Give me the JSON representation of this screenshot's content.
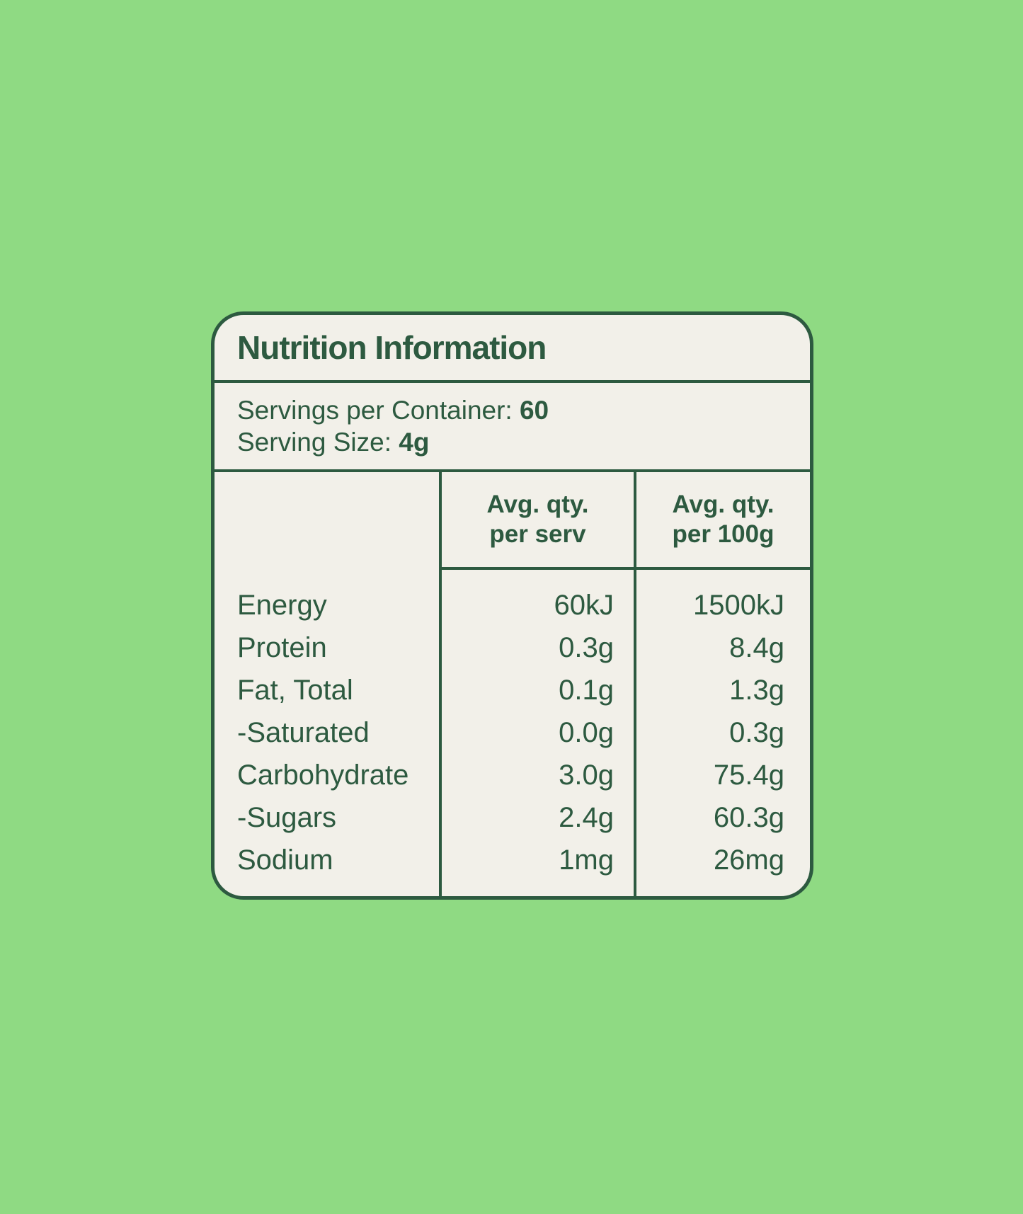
{
  "colors": {
    "background": "#8FDA83",
    "card": "#F2F0E9",
    "ink": "#2D5A40"
  },
  "card": {
    "title": "Nutrition Information",
    "servings_per_container": {
      "label": "Servings per Container:",
      "value": "60"
    },
    "serving_size": {
      "label": "Serving Size:",
      "value": "4g"
    },
    "table": {
      "columns": [
        {
          "line1": "",
          "line2": ""
        },
        {
          "line1": "Avg. qty.",
          "line2": "per serv"
        },
        {
          "line1": "Avg. qty.",
          "line2": "per 100g"
        }
      ],
      "rows": [
        {
          "label": "Energy",
          "per_serv": "60kJ",
          "per_100g": "1500kJ"
        },
        {
          "label": "Protein",
          "per_serv": "0.3g",
          "per_100g": "8.4g"
        },
        {
          "label": "Fat, Total",
          "per_serv": "0.1g",
          "per_100g": "1.3g"
        },
        {
          "label": "-Saturated",
          "per_serv": "0.0g",
          "per_100g": "0.3g"
        },
        {
          "label": "Carbohydrate",
          "per_serv": "3.0g",
          "per_100g": "75.4g"
        },
        {
          "label": "-Sugars",
          "per_serv": "2.4g",
          "per_100g": "60.3g"
        },
        {
          "label": "Sodium",
          "per_serv": "1mg",
          "per_100g": "26mg"
        }
      ]
    }
  }
}
